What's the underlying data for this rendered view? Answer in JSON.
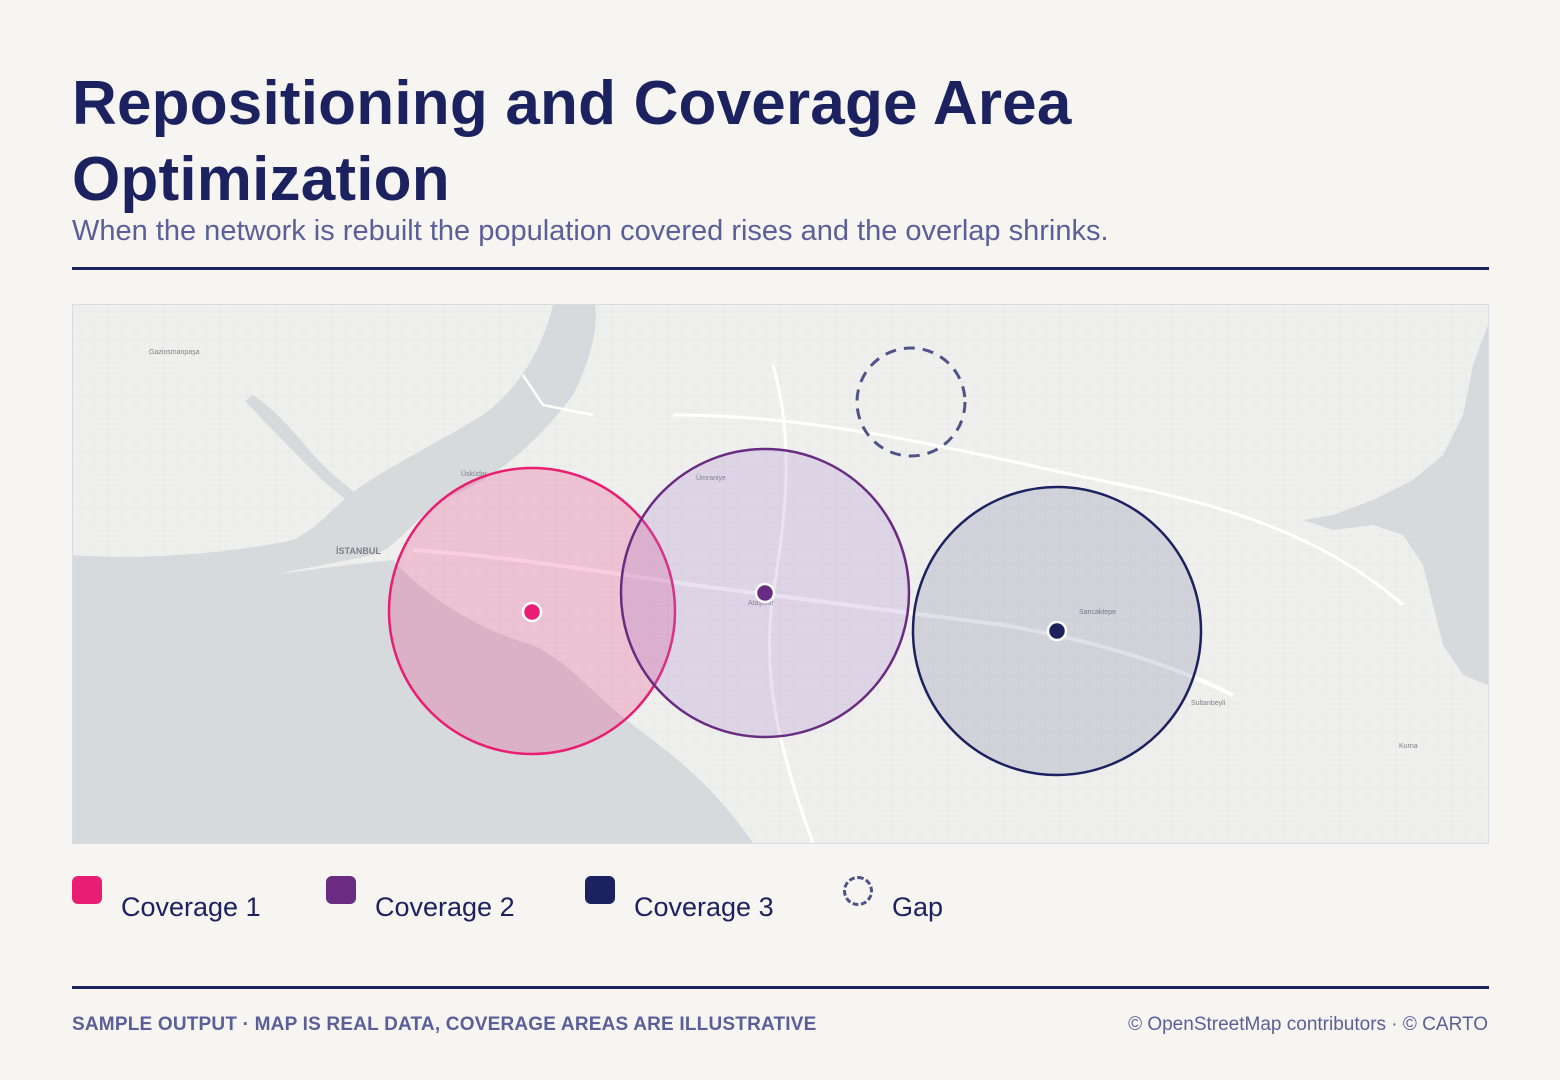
{
  "header": {
    "title": "Repositioning and Coverage Area Optimization",
    "subtitle": "When the network is rebuilt the population covered rises and the overlap shrinks."
  },
  "map": {
    "place_labels": [
      "Gaziosmanpaşa",
      "Üsküdar",
      "İSTANBUL",
      "Ümraniye",
      "Ataşehir",
      "Sancaktepe",
      "Sultanbeyli",
      "Kurna"
    ],
    "coverage_areas": [
      {
        "name": "Coverage 1",
        "color": "#e91e72",
        "fill": "rgba(233,30,114,0.22)"
      },
      {
        "name": "Coverage 2",
        "color": "#6a2c82",
        "fill": "rgba(160,120,200,0.20)"
      },
      {
        "name": "Coverage 3",
        "color": "#1c2260",
        "fill": "rgba(60,60,120,0.18)"
      }
    ],
    "gap": {
      "name": "Gap",
      "color": "#4e5487",
      "style": "dashed"
    }
  },
  "legend": {
    "items": [
      {
        "label": "Coverage 1",
        "color": "#e91e72"
      },
      {
        "label": "Coverage 2",
        "color": "#6a2c82"
      },
      {
        "label": "Coverage 3",
        "color": "#1c2260"
      },
      {
        "label": "Gap",
        "color": "#4e5487"
      }
    ]
  },
  "footer": {
    "note": "SAMPLE OUTPUT · MAP IS REAL DATA, COVERAGE AREAS ARE ILLUSTRATIVE",
    "attribution": "© OpenStreetMap contributors · © CARTO"
  }
}
